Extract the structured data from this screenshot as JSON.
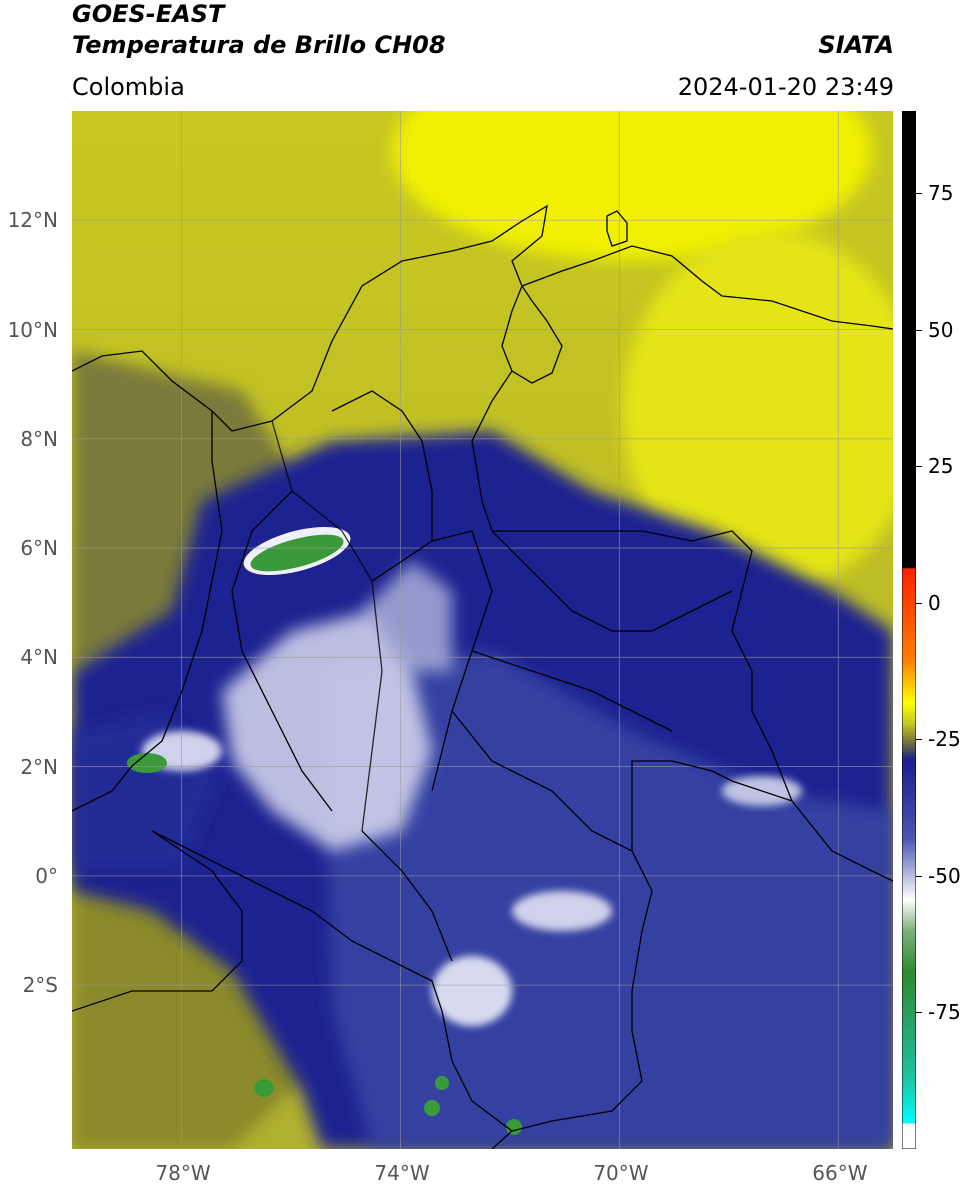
{
  "header": {
    "title_line1": "GOES-EAST",
    "title_line2": "Temperatura de Brillo CH08",
    "region": "Colombia",
    "agency": "SIATA",
    "timestamp": "2024-01-20 23:49"
  },
  "map": {
    "lon_range": [
      -80,
      -65
    ],
    "lat_range": [
      -5,
      14
    ],
    "lat_ticks": [
      {
        "value": 12,
        "label": "12°N"
      },
      {
        "value": 10,
        "label": "10°N"
      },
      {
        "value": 8,
        "label": "8°N"
      },
      {
        "value": 6,
        "label": "6°N"
      },
      {
        "value": 4,
        "label": "4°N"
      },
      {
        "value": 2,
        "label": "2°N"
      },
      {
        "value": 0,
        "label": "0°"
      },
      {
        "value": -2,
        "label": "2°S"
      }
    ],
    "lon_ticks": [
      {
        "value": -78,
        "label": "78°W"
      },
      {
        "value": -74,
        "label": "74°W"
      },
      {
        "value": -70,
        "label": "70°W"
      },
      {
        "value": -66,
        "label": "66°W"
      }
    ],
    "grid": true,
    "colors": {
      "warm_yellow": "#e6e600",
      "olive": "#8c8c2a",
      "cold_blue": "#1a1f8c",
      "cloud_white": "#e8e8f4",
      "core_green": "#2e8a2e",
      "border": "#000000"
    }
  },
  "colorbar": {
    "range": [
      -100,
      90
    ],
    "ticks": [
      {
        "value": 75,
        "label": "75"
      },
      {
        "value": 50,
        "label": "50"
      },
      {
        "value": 25,
        "label": "25"
      },
      {
        "value": 0,
        "label": "0"
      },
      {
        "value": -25,
        "label": "-25"
      },
      {
        "value": -50,
        "label": "-50"
      },
      {
        "value": -75,
        "label": "-75"
      }
    ]
  }
}
